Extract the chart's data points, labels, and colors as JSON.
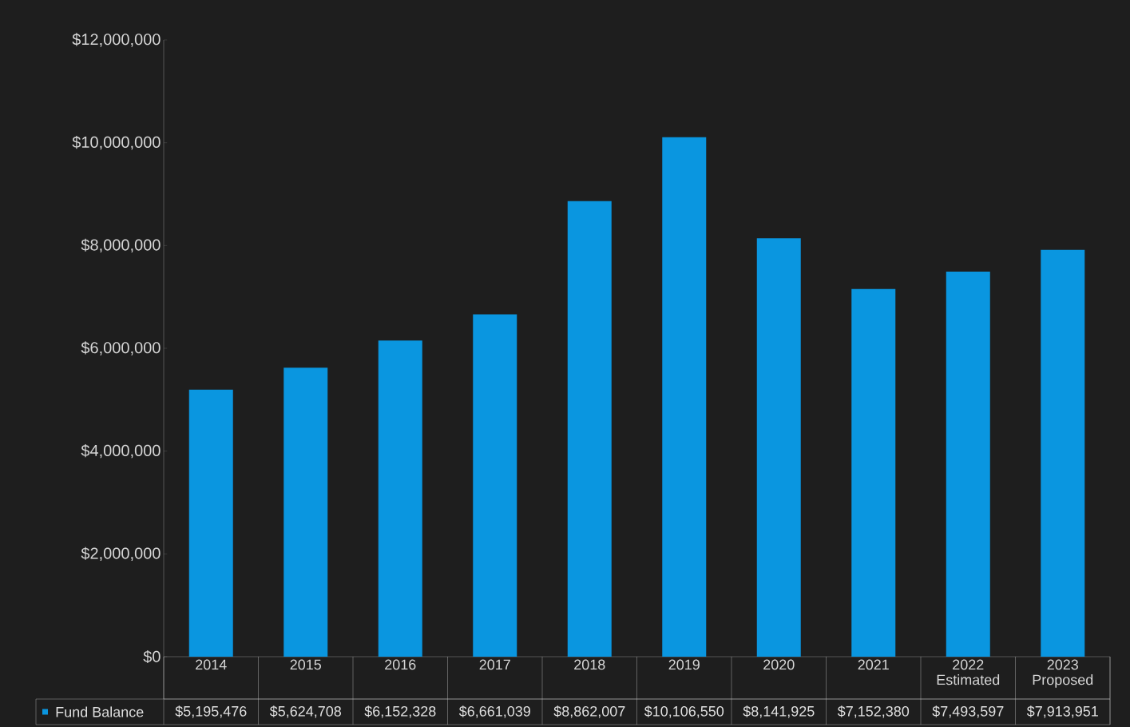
{
  "chart_data": {
    "type": "bar",
    "categories": [
      "2014",
      "2015",
      "2016",
      "2017",
      "2018",
      "2019",
      "2020",
      "2021",
      "2022 Estimated",
      "2023 Proposed"
    ],
    "series": [
      {
        "name": "Fund Balance",
        "color": "#0a96e0",
        "values": [
          5195476,
          5624708,
          6152328,
          6661039,
          8862007,
          10106550,
          8141925,
          7152380,
          7493597,
          7913951
        ],
        "value_labels": [
          "$5,195,476",
          "$5,624,708",
          "$6,152,328",
          "$6,661,039",
          "$8,862,007",
          "$10,106,550",
          "$8,141,925",
          "$7,152,380",
          "$7,493,597",
          "$7,913,951"
        ]
      }
    ],
    "ylim": [
      0,
      12000000
    ],
    "yticks": [
      {
        "value": 0,
        "label": "$0"
      },
      {
        "value": 2000000,
        "label": "$2,000,000"
      },
      {
        "value": 4000000,
        "label": "$4,000,000"
      },
      {
        "value": 6000000,
        "label": "$6,000,000"
      },
      {
        "value": 8000000,
        "label": "$8,000,000"
      },
      {
        "value": 10000000,
        "label": "$10,000,000"
      },
      {
        "value": 12000000,
        "label": "$12,000,000"
      }
    ],
    "grid": false,
    "legend": "bottom left"
  }
}
